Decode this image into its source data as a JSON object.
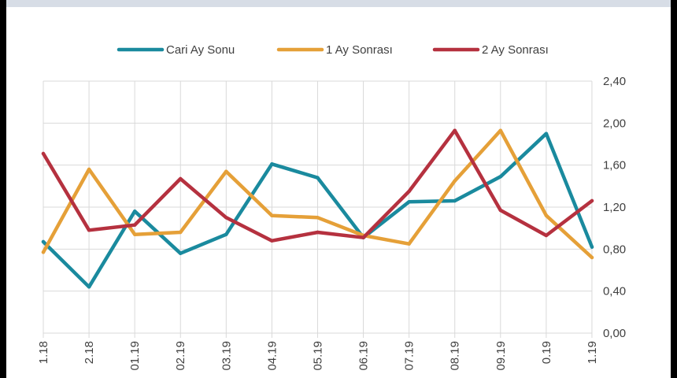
{
  "chart_data": {
    "type": "line",
    "x": [
      "1.18",
      "2.18",
      "01.19",
      "02.19",
      "03.19",
      "04.19",
      "05.19",
      "06.19",
      "07.19",
      "08.19",
      "09.19",
      "0.19",
      "1.19"
    ],
    "series": [
      {
        "name": "Cari Ay Sonu",
        "color": "#1a8a9e",
        "values": [
          0.87,
          0.44,
          1.16,
          0.76,
          0.94,
          1.61,
          1.48,
          0.91,
          1.25,
          1.26,
          1.49,
          1.9,
          0.82
        ]
      },
      {
        "name": "1 Ay Sonrası",
        "color": "#e5a038",
        "values": [
          0.77,
          1.56,
          0.94,
          0.96,
          1.54,
          1.12,
          1.1,
          0.93,
          0.85,
          1.45,
          1.93,
          1.12,
          0.72
        ]
      },
      {
        "name": "2 Ay Sonrası",
        "color": "#b5313f",
        "values": [
          1.71,
          0.98,
          1.03,
          1.47,
          1.1,
          0.88,
          0.96,
          0.91,
          1.35,
          1.93,
          1.17,
          0.93,
          1.26
        ]
      }
    ],
    "yticks": [
      "0,00",
      "0,40",
      "0,80",
      "1,20",
      "1,60",
      "2,00",
      "2,40"
    ],
    "ylim": [
      0,
      2.4
    ],
    "grid": true,
    "legend": "top"
  }
}
